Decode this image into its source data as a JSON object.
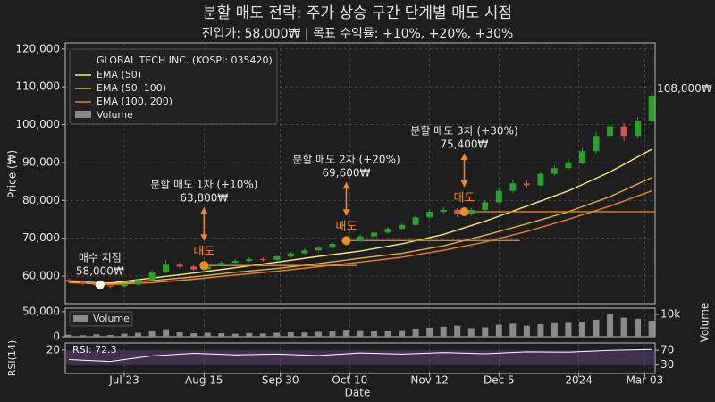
{
  "chart_data": {
    "type": "candlestick",
    "title": "분할 매도 전략: 주가 상승 구간 단계별 매도 시점",
    "subtitle": "진입가: 58,000₩ | 목표 수익률: +10%, +20%, +30%",
    "x_label": "Date",
    "y_label": "Price (₩)",
    "grid": true,
    "legend": "upper left",
    "legend_title": "GLOBAL TECH INC. (KOSPI: 035420)",
    "xlim": [
      0,
      170
    ],
    "xticks": [
      {
        "value": 17,
        "label": "Jul 23"
      },
      {
        "value": 40,
        "label": "Aug 15"
      },
      {
        "value": 62,
        "label": "Sep 30"
      },
      {
        "value": 82,
        "label": "Oct 10"
      },
      {
        "value": 105,
        "label": "Nov 12"
      },
      {
        "value": 125,
        "label": "Dec 5"
      },
      {
        "value": 148,
        "label": "2024"
      },
      {
        "value": 167,
        "label": "Mar 03"
      }
    ],
    "ylim": [
      52700,
      121600
    ],
    "yticks": [
      {
        "value": 60000,
        "label": "60,000"
      },
      {
        "value": 70000,
        "label": "70,000"
      },
      {
        "value": 80000,
        "label": "80,000"
      },
      {
        "value": 90000,
        "label": "90,000"
      },
      {
        "value": 100000,
        "label": "100,000"
      },
      {
        "value": 110000,
        "label": "110,000"
      },
      {
        "value": 120000,
        "label": "120,000"
      }
    ],
    "up_color": "#2ca02c",
    "down_color": "#d9534f",
    "candles": {
      "x": [
        1,
        5,
        9,
        13,
        17,
        21,
        25,
        29,
        33,
        37,
        41,
        45,
        49,
        53,
        57,
        61,
        65,
        69,
        73,
        77,
        81,
        85,
        89,
        93,
        97,
        101,
        105,
        109,
        113,
        117,
        121,
        125,
        129,
        133,
        137,
        141,
        145,
        149,
        153,
        157,
        161,
        165,
        169
      ],
      "open": [
        59000,
        58500,
        58000,
        57500,
        57300,
        57800,
        59000,
        61000,
        63000,
        62500,
        61800,
        62800,
        63500,
        64000,
        64500,
        64300,
        65200,
        66000,
        66800,
        67500,
        68500,
        69200,
        70500,
        71500,
        72500,
        73500,
        75500,
        77000,
        77500,
        76500,
        77500,
        79500,
        82500,
        84500,
        84000,
        87000,
        88500,
        90000,
        93000,
        97000,
        99500,
        97000,
        101000
      ],
      "high": [
        59400,
        58900,
        58300,
        57900,
        58200,
        59400,
        61600,
        64300,
        63600,
        62900,
        63200,
        64000,
        64500,
        65000,
        64900,
        65600,
        66400,
        67300,
        68000,
        69000,
        69800,
        71000,
        72000,
        73000,
        74000,
        76000,
        77600,
        78200,
        77900,
        78000,
        80000,
        83200,
        85500,
        85200,
        87600,
        89200,
        91000,
        94000,
        98000,
        101000,
        100500,
        102000,
        108500
      ],
      "low": [
        58100,
        57600,
        57100,
        56900,
        57000,
        57600,
        58800,
        60800,
        62000,
        61400,
        61500,
        62500,
        63200,
        63700,
        63900,
        64100,
        64900,
        65700,
        66500,
        67300,
        68100,
        69000,
        70200,
        71200,
        72200,
        73300,
        75200,
        76600,
        75500,
        76000,
        77200,
        79300,
        82000,
        83200,
        83600,
        86600,
        88000,
        89600,
        92500,
        96500,
        95500,
        96500,
        100500
      ],
      "close": [
        58500,
        58000,
        57500,
        57300,
        57800,
        59000,
        61000,
        63000,
        62500,
        61800,
        62800,
        63500,
        64000,
        64500,
        64300,
        65200,
        66000,
        66800,
        67500,
        68500,
        69200,
        70500,
        71500,
        72500,
        73500,
        75500,
        77000,
        77500,
        76500,
        77500,
        79500,
        82500,
        84500,
        84000,
        87000,
        88500,
        90000,
        93000,
        97000,
        99500,
        97000,
        101000,
        107500
      ]
    },
    "series": [
      {
        "name": "EMA (50)",
        "color": "#f3e97a",
        "x": [
          1,
          13,
          25,
          37,
          49,
          61,
          73,
          85,
          97,
          109,
          121,
          133,
          145,
          157,
          169
        ],
        "values": [
          58500,
          58200,
          59500,
          60800,
          62200,
          63700,
          65200,
          66600,
          68500,
          71000,
          74500,
          78500,
          82500,
          87500,
          93500
        ]
      },
      {
        "name": "EMA (50, 100)",
        "color": "#e0b040",
        "x": [
          1,
          13,
          25,
          37,
          49,
          61,
          73,
          85,
          97,
          109,
          121,
          133,
          145,
          157,
          169
        ],
        "values": [
          58800,
          58000,
          58800,
          59800,
          61000,
          62000,
          63300,
          64700,
          66000,
          68000,
          70800,
          73800,
          77000,
          81000,
          86000
        ]
      },
      {
        "name": "EMA (100, 200)",
        "color": "#e8822a",
        "x": [
          1,
          13,
          25,
          37,
          49,
          61,
          73,
          85,
          97,
          109,
          121,
          133,
          145,
          157,
          169
        ],
        "values": [
          58300,
          57800,
          58300,
          59200,
          60300,
          61300,
          62500,
          63700,
          65000,
          66800,
          69000,
          71800,
          75000,
          78500,
          82500
        ]
      }
    ],
    "level_color": "#f08a24",
    "buy": {
      "x": 10,
      "y": 57700,
      "title": "매수 지점",
      "price_label": "58,000₩"
    },
    "sells": [
      {
        "x": 40,
        "y": 62800,
        "level_to": 84,
        "marker_label": "매도",
        "title": "분할 매도 1차 (+10%)",
        "price_label": "63,800₩"
      },
      {
        "x": 81,
        "y": 69400,
        "level_to": 131,
        "marker_label": "매도",
        "title": "분할 매도 2차 (+20%)",
        "price_label": "69,600₩"
      },
      {
        "x": 115,
        "y": 77000,
        "level_to": 170,
        "marker_label": "매도",
        "title": "분할 매도 3차 (+30%)",
        "price_label": "75,400₩"
      }
    ],
    "last_price_label": "108,000₩",
    "volume": {
      "name": "Volume",
      "color": "#8a8a8a",
      "y2_label": "Volume",
      "ylim": [
        0,
        57000
      ],
      "yticks": [
        0,
        {
          "value": 50000,
          "label": "50,000"
        }
      ],
      "y2lim": [
        0,
        12800
      ],
      "y2ticks": [
        {
          "value": 10000,
          "label": "10k"
        }
      ],
      "values": [
        4000,
        3000,
        5000,
        3500,
        6000,
        8000,
        12000,
        15000,
        9000,
        7000,
        8000,
        7000,
        6000,
        7500,
        6500,
        8000,
        9000,
        8500,
        10000,
        12000,
        14000,
        13000,
        11000,
        12000,
        13000,
        16000,
        18000,
        20000,
        22000,
        17000,
        19000,
        24000,
        26000,
        22000,
        25000,
        27000,
        28000,
        30000,
        34000,
        45000,
        38000,
        36000,
        32000
      ]
    },
    "rsi": {
      "y_label": "RSI(14)",
      "label": "RSI: 72.3",
      "color": "#ffffff",
      "band_color": "#6a4a8a",
      "ylim": [
        0,
        26
      ],
      "yticks": [
        20
      ],
      "y2lim": [
        7.5,
        90
      ],
      "y2ticks": [
        30,
        70
      ],
      "x": [
        1,
        13,
        25,
        37,
        49,
        61,
        73,
        85,
        97,
        109,
        121,
        133,
        145,
        157,
        169
      ],
      "values": [
        45,
        40,
        55,
        62,
        58,
        60,
        56,
        63,
        60,
        64,
        61,
        66,
        65,
        70,
        72.3
      ]
    }
  }
}
